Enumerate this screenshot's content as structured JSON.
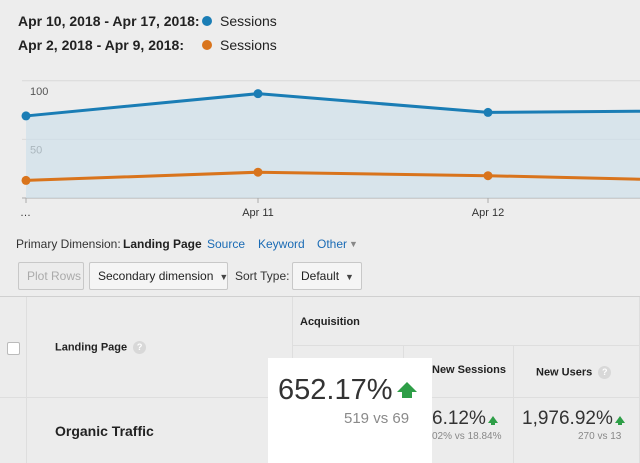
{
  "legend": [
    {
      "range": "Apr 10, 2018 - Apr 17, 2018:",
      "metric": "Sessions",
      "color": "#1a7db5"
    },
    {
      "range": "Apr 2, 2018 - Apr 9, 2018:",
      "metric": "Sessions",
      "color": "#d9741c"
    }
  ],
  "chart_data": {
    "type": "line",
    "x": [
      "…",
      "Apr 11",
      "Apr 12",
      ""
    ],
    "ytick_labels": [
      "100",
      "50"
    ],
    "yticks": [
      100,
      50
    ],
    "ylim": [
      0,
      116
    ],
    "grid": true,
    "series": [
      {
        "name": "Apr 10, 2018 - Apr 17, 2018",
        "color": "#1a7db5",
        "values": [
          70,
          89,
          73,
          74
        ]
      },
      {
        "name": "Apr 2, 2018 - Apr 9, 2018",
        "color": "#d9741c",
        "values": [
          15,
          22,
          19,
          16
        ]
      }
    ]
  },
  "dimension_bar": {
    "prefix": "Primary Dimension:",
    "active": "Landing Page",
    "links": [
      "Source",
      "Keyword",
      "Other"
    ]
  },
  "controls": {
    "plot_rows": "Plot Rows",
    "secondary_dimension": "Secondary dimension",
    "sort_type_label": "Sort Type:",
    "sort_type_value": "Default"
  },
  "table": {
    "landing_page_header": "Landing Page",
    "group_header": "Acquisition",
    "new_sessions_header": "New Sessions",
    "new_users_header": "New Users",
    "row_label": "Organic Traffic",
    "new_sessions_big": "6.12%",
    "new_sessions_small": "02% vs 18.84%",
    "new_users_big": "1,976.92%",
    "new_users_small": "270 vs 13"
  },
  "highlight": {
    "value": "652.17%",
    "comparison": "519 vs 69"
  }
}
